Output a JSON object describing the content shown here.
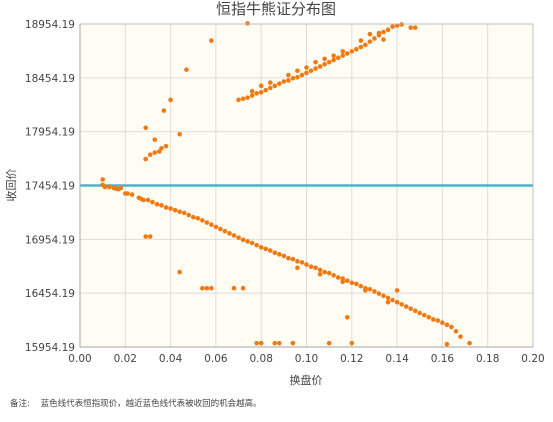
{
  "chart_data": {
    "type": "scatter",
    "title": "恒指牛熊证分布图",
    "xlabel": "换盘价",
    "ylabel": "收回价",
    "xlim": [
      0,
      0.2
    ],
    "ylim": [
      15954.19,
      18954.19
    ],
    "xticks": [
      0,
      0.02,
      0.04,
      0.06,
      0.08,
      0.1,
      0.12,
      0.14,
      0.16,
      0.18,
      0.2
    ],
    "xtick_labels": [
      "0.00",
      "0.02",
      "0.04",
      "0.06",
      "0.08",
      "0.10",
      "0.12",
      "0.14",
      "0.16",
      "0.18",
      "0.20"
    ],
    "yticks": [
      15954.19,
      16454.19,
      16954.19,
      17454.19,
      17954.19,
      18454.19,
      18954.19
    ],
    "ytick_labels": [
      "15954.19",
      "16454.19",
      "16954.19",
      "17454.19",
      "17954.19",
      "18454.19",
      "18954.19"
    ],
    "grid": true,
    "reference_line": {
      "y": 17454.19,
      "color": "#4bb3c3"
    },
    "point_color": "#f07a12",
    "plot_background": "#fffcf4",
    "series": [
      {
        "points": [
          [
            0.01,
            17510
          ],
          [
            0.01,
            17460
          ],
          [
            0.011,
            17440
          ],
          [
            0.013,
            17440
          ],
          [
            0.015,
            17430
          ],
          [
            0.016,
            17425
          ],
          [
            0.017,
            17420
          ],
          [
            0.018,
            17430
          ],
          [
            0.02,
            17380
          ],
          [
            0.021,
            17380
          ],
          [
            0.023,
            17370
          ],
          [
            0.026,
            17340
          ],
          [
            0.027,
            17330
          ],
          [
            0.028,
            17320
          ],
          [
            0.03,
            17320
          ],
          [
            0.032,
            17300
          ],
          [
            0.034,
            17280
          ],
          [
            0.036,
            17270
          ],
          [
            0.038,
            17250
          ],
          [
            0.04,
            17240
          ],
          [
            0.042,
            17225
          ],
          [
            0.044,
            17210
          ],
          [
            0.046,
            17200
          ],
          [
            0.048,
            17180
          ],
          [
            0.05,
            17160
          ],
          [
            0.052,
            17150
          ],
          [
            0.054,
            17130
          ],
          [
            0.056,
            17110
          ],
          [
            0.058,
            17090
          ],
          [
            0.06,
            17070
          ],
          [
            0.062,
            17050
          ],
          [
            0.064,
            17030
          ],
          [
            0.066,
            17010
          ],
          [
            0.068,
            16990
          ],
          [
            0.07,
            16970
          ],
          [
            0.072,
            16950
          ],
          [
            0.074,
            16935
          ],
          [
            0.076,
            16920
          ],
          [
            0.078,
            16900
          ],
          [
            0.08,
            16880
          ],
          [
            0.082,
            16865
          ],
          [
            0.084,
            16850
          ],
          [
            0.086,
            16830
          ],
          [
            0.088,
            16815
          ],
          [
            0.09,
            16800
          ],
          [
            0.092,
            16780
          ],
          [
            0.094,
            16770
          ],
          [
            0.096,
            16750
          ],
          [
            0.098,
            16740
          ],
          [
            0.1,
            16720
          ],
          [
            0.102,
            16700
          ],
          [
            0.104,
            16690
          ],
          [
            0.106,
            16670
          ],
          [
            0.108,
            16650
          ],
          [
            0.11,
            16640
          ],
          [
            0.112,
            16620
          ],
          [
            0.114,
            16600
          ],
          [
            0.116,
            16590
          ],
          [
            0.118,
            16570
          ],
          [
            0.12,
            16550
          ],
          [
            0.122,
            16540
          ],
          [
            0.124,
            16520
          ],
          [
            0.126,
            16500
          ],
          [
            0.128,
            16490
          ],
          [
            0.13,
            16470
          ],
          [
            0.132,
            16450
          ],
          [
            0.134,
            16430
          ],
          [
            0.136,
            16410
          ],
          [
            0.138,
            16390
          ],
          [
            0.14,
            16370
          ],
          [
            0.142,
            16350
          ],
          [
            0.144,
            16330
          ],
          [
            0.146,
            16310
          ],
          [
            0.148,
            16290
          ],
          [
            0.15,
            16270
          ],
          [
            0.152,
            16250
          ],
          [
            0.154,
            16230
          ],
          [
            0.156,
            16210
          ],
          [
            0.158,
            16200
          ],
          [
            0.16,
            16180
          ],
          [
            0.162,
            16160
          ],
          [
            0.164,
            16140
          ],
          [
            0.166,
            16100
          ],
          [
            0.168,
            16050
          ],
          [
            0.172,
            15990
          ],
          [
            0.029,
            16980
          ],
          [
            0.031,
            16980
          ],
          [
            0.044,
            16650
          ],
          [
            0.054,
            16500
          ],
          [
            0.056,
            16500
          ],
          [
            0.058,
            16500
          ],
          [
            0.068,
            16500
          ],
          [
            0.072,
            16500
          ],
          [
            0.118,
            16230
          ],
          [
            0.14,
            16480
          ],
          [
            0.162,
            15980
          ],
          [
            0.078,
            15990
          ],
          [
            0.08,
            15990
          ],
          [
            0.086,
            15990
          ],
          [
            0.088,
            15990
          ],
          [
            0.094,
            15990
          ],
          [
            0.11,
            15990
          ],
          [
            0.12,
            15990
          ],
          [
            0.096,
            16690
          ],
          [
            0.106,
            16630
          ],
          [
            0.116,
            16560
          ],
          [
            0.126,
            16480
          ],
          [
            0.136,
            16370
          ]
        ]
      },
      {
        "points": [
          [
            0.072,
            18260
          ],
          [
            0.074,
            18270
          ],
          [
            0.076,
            18290
          ],
          [
            0.078,
            18310
          ],
          [
            0.08,
            18320
          ],
          [
            0.082,
            18340
          ],
          [
            0.084,
            18360
          ],
          [
            0.086,
            18380
          ],
          [
            0.088,
            18400
          ],
          [
            0.09,
            18420
          ],
          [
            0.092,
            18430
          ],
          [
            0.094,
            18450
          ],
          [
            0.096,
            18460
          ],
          [
            0.098,
            18480
          ],
          [
            0.1,
            18500
          ],
          [
            0.102,
            18520
          ],
          [
            0.104,
            18540
          ],
          [
            0.106,
            18560
          ],
          [
            0.108,
            18580
          ],
          [
            0.11,
            18600
          ],
          [
            0.112,
            18620
          ],
          [
            0.114,
            18640
          ],
          [
            0.116,
            18660
          ],
          [
            0.118,
            18680
          ],
          [
            0.12,
            18700
          ],
          [
            0.122,
            18720
          ],
          [
            0.124,
            18740
          ],
          [
            0.126,
            18760
          ],
          [
            0.128,
            18790
          ],
          [
            0.13,
            18820
          ],
          [
            0.132,
            18850
          ],
          [
            0.134,
            18880
          ],
          [
            0.136,
            18900
          ],
          [
            0.138,
            18930
          ],
          [
            0.14,
            18940
          ],
          [
            0.142,
            18950
          ],
          [
            0.076,
            18330
          ],
          [
            0.084,
            18410
          ],
          [
            0.092,
            18480
          ],
          [
            0.1,
            18550
          ],
          [
            0.108,
            18630
          ],
          [
            0.116,
            18700
          ],
          [
            0.124,
            18800
          ],
          [
            0.132,
            18870
          ],
          [
            0.07,
            18250
          ],
          [
            0.08,
            18380
          ],
          [
            0.096,
            18520
          ],
          [
            0.112,
            18660
          ],
          [
            0.128,
            18860
          ],
          [
            0.134,
            18810
          ],
          [
            0.146,
            18920
          ],
          [
            0.148,
            18920
          ],
          [
            0.104,
            18600
          ],
          [
            0.058,
            18800
          ],
          [
            0.047,
            18530
          ],
          [
            0.037,
            18150
          ],
          [
            0.04,
            18250
          ],
          [
            0.033,
            17880
          ],
          [
            0.044,
            17930
          ],
          [
            0.029,
            17700
          ],
          [
            0.031,
            17740
          ],
          [
            0.033,
            17760
          ],
          [
            0.035,
            17770
          ],
          [
            0.036,
            17800
          ],
          [
            0.038,
            17820
          ],
          [
            0.029,
            17990
          ],
          [
            0.074,
            18960
          ]
        ]
      }
    ]
  },
  "note": {
    "label": "备注:",
    "text": "蓝色线代表恒指现价，越近蓝色线代表被收回的机会越高。"
  }
}
